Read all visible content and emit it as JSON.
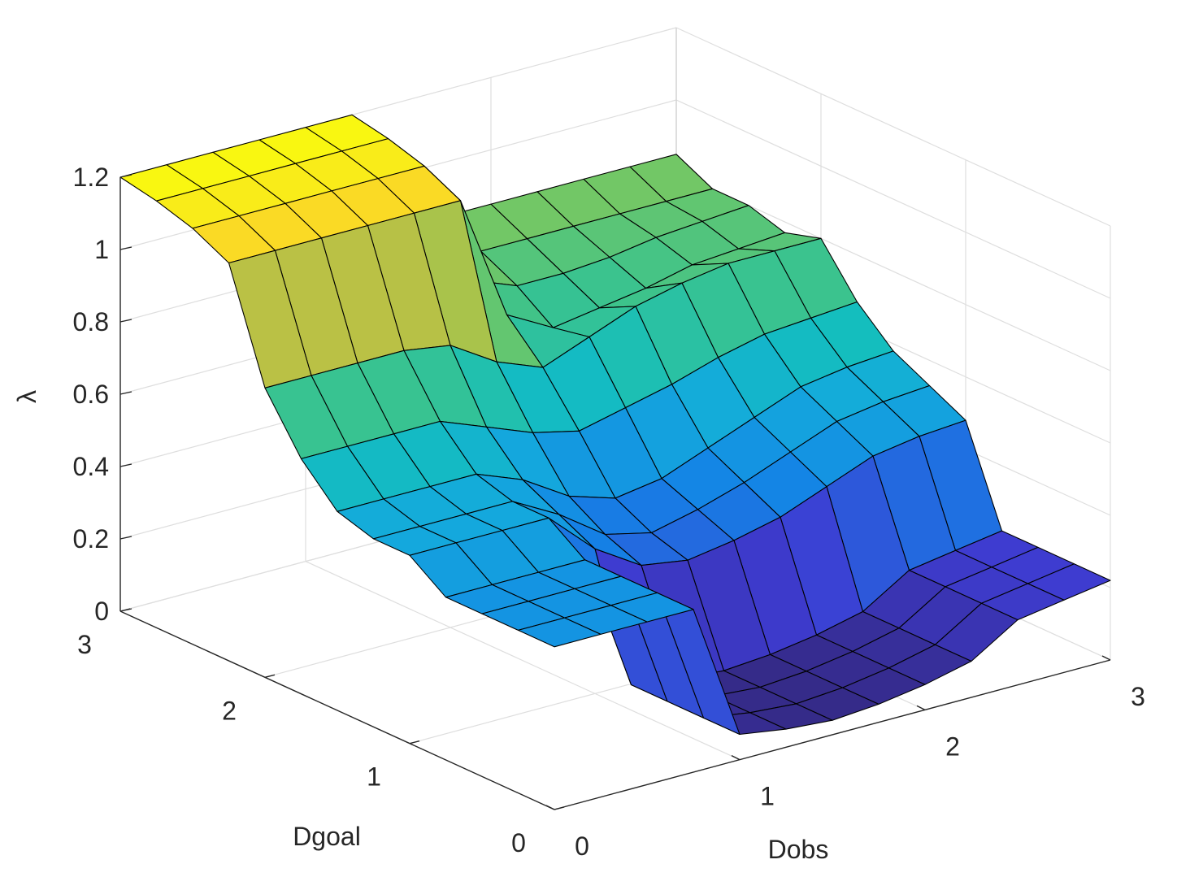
{
  "chart_data": {
    "type": "surface",
    "title": "",
    "xlabel": "Dobs",
    "ylabel": "Dgoal",
    "zlabel": "λ",
    "xlim": [
      0,
      3
    ],
    "ylim": [
      0,
      3
    ],
    "zlim": [
      0,
      1.2
    ],
    "x_ticks": [
      "0",
      "1",
      "2",
      "3"
    ],
    "y_ticks": [
      "0",
      "1",
      "2",
      "3"
    ],
    "z_ticks": [
      "0",
      "0.2",
      "0.4",
      "0.6",
      "0.8",
      "1",
      "1.2"
    ],
    "grid": true,
    "edge_color": "#000000",
    "colormap": "parula",
    "x": [
      0,
      0.25,
      0.5,
      0.75,
      1.0,
      1.25,
      1.5,
      1.75,
      2.0,
      2.25,
      2.5,
      2.75,
      3.0
    ],
    "y": [
      0,
      0.25,
      0.5,
      0.75,
      1.0,
      1.25,
      1.5,
      1.75,
      2.0,
      2.25,
      2.5,
      2.75,
      3.0
    ],
    "z_rows_by_dgoal": [
      [
        0.45,
        0.45,
        0.45,
        0.45,
        0.07,
        0.05,
        0.04,
        0.05,
        0.07,
        0.1,
        0.18,
        0.2,
        0.22
      ],
      [
        0.45,
        0.45,
        0.45,
        0.45,
        0.07,
        0.05,
        0.04,
        0.05,
        0.07,
        0.1,
        0.18,
        0.2,
        0.22
      ],
      [
        0.45,
        0.45,
        0.45,
        0.45,
        0.07,
        0.05,
        0.04,
        0.05,
        0.07,
        0.1,
        0.18,
        0.2,
        0.22
      ],
      [
        0.45,
        0.45,
        0.45,
        0.45,
        0.07,
        0.05,
        0.04,
        0.05,
        0.07,
        0.1,
        0.18,
        0.2,
        0.22
      ],
      [
        0.52,
        0.52,
        0.52,
        0.52,
        0.4,
        0.32,
        0.3,
        0.32,
        0.35,
        0.4,
        0.45,
        0.47,
        0.48
      ],
      [
        0.52,
        0.52,
        0.52,
        0.52,
        0.45,
        0.36,
        0.33,
        0.36,
        0.4,
        0.45,
        0.5,
        0.52,
        0.53
      ],
      [
        0.55,
        0.55,
        0.55,
        0.55,
        0.5,
        0.42,
        0.38,
        0.4,
        0.45,
        0.5,
        0.55,
        0.57,
        0.58
      ],
      [
        0.65,
        0.65,
        0.65,
        0.65,
        0.6,
        0.55,
        0.52,
        0.55,
        0.58,
        0.62,
        0.65,
        0.66,
        0.67
      ],
      [
        0.8,
        0.8,
        0.8,
        0.8,
        0.78,
        0.7,
        0.65,
        0.7,
        0.75,
        0.78,
        0.8,
        0.8,
        0.8
      ],
      [
        1.1,
        1.1,
        1.1,
        1.1,
        1.1,
        1.1,
        0.75,
        0.68,
        0.7,
        0.72,
        0.75,
        0.76,
        0.77
      ],
      [
        1.15,
        1.15,
        1.15,
        1.15,
        1.15,
        1.15,
        0.8,
        0.75,
        0.75,
        0.76,
        0.78,
        0.79,
        0.8
      ],
      [
        1.18,
        1.18,
        1.18,
        1.18,
        1.18,
        1.18,
        0.9,
        0.8,
        0.8,
        0.8,
        0.8,
        0.8,
        0.8
      ],
      [
        1.2,
        1.2,
        1.2,
        1.2,
        1.2,
        1.2,
        0.95,
        0.85,
        0.85,
        0.85,
        0.85,
        0.85,
        0.85
      ]
    ]
  }
}
